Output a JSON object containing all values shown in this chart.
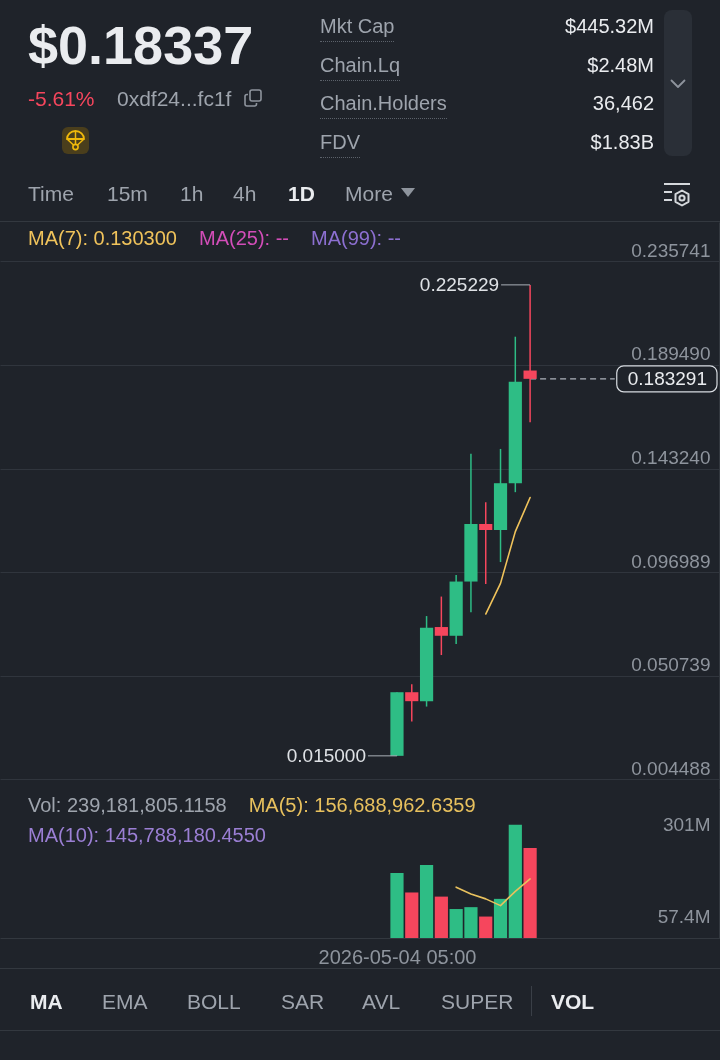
{
  "chart_data": [
    {
      "type": "other",
      "title": "$0.18337",
      "annotations": [
        "-5.61%",
        "0xdf24...fc1f",
        "Mkt Cap",
        "$445.32M",
        "Chain.Lq",
        "$2.48M",
        "Chain.Holders",
        "36,462",
        "FDV",
        "$1.83B",
        "Time",
        "15m",
        "1h",
        "4h",
        "1D",
        "More"
      ]
    },
    {
      "type": "candlestick",
      "categories": [
        null,
        null,
        null,
        null,
        null,
        null,
        null,
        null,
        null,
        null,
        null,
        null,
        null,
        null,
        null,
        null,
        null,
        null,
        null,
        null,
        null,
        null,
        null,
        null,
        null,
        null,
        null,
        null,
        null,
        null,
        null,
        null,
        null,
        null,
        null,
        null,
        null,
        null,
        null,
        null,
        null,
        null,
        null,
        null,
        null,
        null,
        null,
        null
      ],
      "ohlc": [
        null,
        null,
        null,
        null,
        null,
        null,
        null,
        null,
        null,
        null,
        null,
        null,
        null,
        null,
        null,
        null,
        null,
        null,
        null,
        null,
        null,
        null,
        null,
        null,
        null,
        null,
        [
          0.015,
          0.0434,
          0.015,
          0.0434
        ],
        [
          0.0434,
          0.047,
          0.0303,
          0.0394
        ],
        [
          0.0394,
          0.0774,
          0.037,
          0.0722
        ],
        [
          0.0725,
          0.0861,
          0.06,
          0.0686
        ],
        [
          0.0686,
          0.0957,
          0.0649,
          0.0928
        ],
        [
          0.0928,
          0.1498,
          0.0791,
          0.1185
        ],
        [
          0.1185,
          0.1282,
          0.0917,
          0.1158
        ],
        [
          0.1158,
          0.152,
          0.1015,
          0.1367
        ],
        [
          0.1367,
          0.2021,
          0.1327,
          0.182
        ],
        [
          0.187,
          0.225229,
          0.1639,
          0.183291
        ],
        null,
        null,
        null,
        null,
        null,
        null,
        null,
        null,
        null,
        null,
        null,
        null
      ],
      "colors": [
        null,
        null,
        null,
        null,
        null,
        null,
        null,
        null,
        null,
        null,
        null,
        null,
        null,
        null,
        null,
        null,
        null,
        null,
        null,
        null,
        null,
        null,
        null,
        null,
        null,
        null,
        "#2ebd85",
        "#f6465d",
        "#2ebd85",
        "#f6465d",
        "#2ebd85",
        "#2ebd85",
        "#f6465d",
        "#2ebd85",
        "#2ebd85",
        "#f6465d",
        null,
        null,
        null,
        null,
        null,
        null,
        null,
        null,
        null,
        null,
        null,
        null
      ],
      "series": [
        {
          "name": "MA(7): 0.130300",
          "type": "line",
          "color": "#f0c35b",
          "values": [
            null,
            null,
            null,
            null,
            null,
            null,
            null,
            null,
            null,
            null,
            null,
            null,
            null,
            null,
            null,
            null,
            null,
            null,
            null,
            null,
            null,
            null,
            null,
            null,
            null,
            null,
            null,
            null,
            null,
            null,
            null,
            null,
            0.0783,
            0.092,
            0.1151,
            0.1303,
            null,
            null,
            null,
            null,
            null,
            null,
            null,
            null,
            null,
            null,
            null,
            null
          ]
        },
        {
          "name": "MA(25): --",
          "type": "line",
          "color": "#d24db8",
          "values": [
            null,
            null,
            null,
            null,
            null,
            null,
            null,
            null,
            null,
            null,
            null,
            null,
            null,
            null,
            null,
            null,
            null,
            null,
            null,
            null,
            null,
            null,
            null,
            null,
            null,
            null,
            null,
            null,
            null,
            null,
            null,
            null,
            null,
            null,
            null,
            null,
            null,
            null,
            null,
            null,
            null,
            null,
            null,
            null,
            null,
            null,
            null,
            null
          ]
        },
        {
          "name": "MA(99): --",
          "type": "line",
          "color": "#8c6fd0",
          "values": [
            null,
            null,
            null,
            null,
            null,
            null,
            null,
            null,
            null,
            null,
            null,
            null,
            null,
            null,
            null,
            null,
            null,
            null,
            null,
            null,
            null,
            null,
            null,
            null,
            null,
            null,
            null,
            null,
            null,
            null,
            null,
            null,
            null,
            null,
            null,
            null,
            null,
            null,
            null,
            null,
            null,
            null,
            null,
            null,
            null,
            null,
            null,
            null
          ]
        }
      ],
      "ylim": [
        0.0002,
        0.2533
      ],
      "yticks": [
        0.004488,
        0.050739,
        0.096989,
        {
          "value": 0.14324,
          "label": "0.143240"
        },
        {
          "value": 0.18949,
          "label": "0.189490"
        },
        0.235741
      ],
      "tick_labels": "y",
      "grid": "y",
      "ref_lines": [
        {
          "axis": "y",
          "value": 0.183291,
          "label": "0.183291",
          "line_style": "dashed"
        }
      ],
      "annotations": [
        "0.225229",
        "0.015000"
      ]
    },
    {
      "type": "bar",
      "categories": [
        null,
        null,
        null,
        null,
        null,
        null,
        null,
        null,
        null,
        null,
        null,
        null,
        null,
        null,
        null,
        null,
        null,
        null,
        null,
        null,
        null,
        null,
        null,
        null,
        null,
        null,
        "2026-05-04 05:00",
        null,
        null,
        null,
        null,
        null,
        null,
        null,
        null,
        null,
        null,
        null,
        null,
        null,
        null,
        null,
        null,
        null,
        null,
        null,
        null,
        null
      ],
      "ylim": [
        0,
        396
      ],
      "yticks": [
        {
          "value": 57.4,
          "label": "57.4M"
        },
        {
          "value": 301,
          "label": "301M"
        }
      ],
      "annotations": [
        "Vol: 239,181,805.1158"
      ],
      "series": [
        {
          "colors": [
            null,
            null,
            null,
            null,
            null,
            null,
            null,
            null,
            null,
            null,
            null,
            null,
            null,
            null,
            null,
            null,
            null,
            null,
            null,
            null,
            null,
            null,
            null,
            null,
            null,
            null,
            "#2ebd85",
            "#f6465d",
            "#2ebd85",
            "#f6465d",
            "#2ebd85",
            "#2ebd85",
            "#f6465d",
            "#2ebd85",
            "#2ebd85",
            "#f6465d",
            null,
            null,
            null,
            null,
            null,
            null,
            null,
            null,
            null,
            null,
            null,
            null
          ],
          "values": [
            null,
            null,
            null,
            null,
            null,
            null,
            null,
            null,
            null,
            null,
            null,
            null,
            null,
            null,
            null,
            null,
            null,
            null,
            null,
            null,
            null,
            null,
            null,
            null,
            null,
            null,
            173,
            121,
            194,
            110,
            77,
            82,
            57,
            104,
            301,
            239,
            null,
            null,
            null,
            null,
            null,
            null,
            null,
            null,
            null,
            null,
            null,
            null
          ]
        },
        {
          "name": "MA(5): 156,688,962.6359",
          "type": "line",
          "color": "#e8c15e",
          "values": [
            null,
            null,
            null,
            null,
            null,
            null,
            null,
            null,
            null,
            null,
            null,
            null,
            null,
            null,
            null,
            null,
            null,
            null,
            null,
            null,
            null,
            null,
            null,
            null,
            null,
            null,
            null,
            null,
            null,
            null,
            135,
            117,
            104,
            86,
            124,
            157,
            null,
            null,
            null,
            null,
            null,
            null,
            null,
            null,
            null,
            null,
            null,
            null
          ]
        },
        {
          "name": "MA(10): 145,788,180.4550",
          "type": "line",
          "color": "#9b7fd4",
          "values": [
            null,
            null,
            null,
            null,
            null,
            null,
            null,
            null,
            null,
            null,
            null,
            null,
            null,
            null,
            null,
            null,
            null,
            null,
            null,
            null,
            null,
            null,
            null,
            null,
            null,
            null,
            null,
            null,
            null,
            null,
            null,
            null,
            null,
            null,
            null,
            null,
            null,
            null,
            null,
            null,
            null,
            null,
            null,
            null,
            null,
            null,
            null,
            null
          ]
        }
      ]
    },
    {
      "type": "other",
      "annotations": [
        "MA",
        "EMA",
        "BOLL",
        "SAR",
        "AVL",
        "SUPER",
        "VOL"
      ]
    }
  ]
}
